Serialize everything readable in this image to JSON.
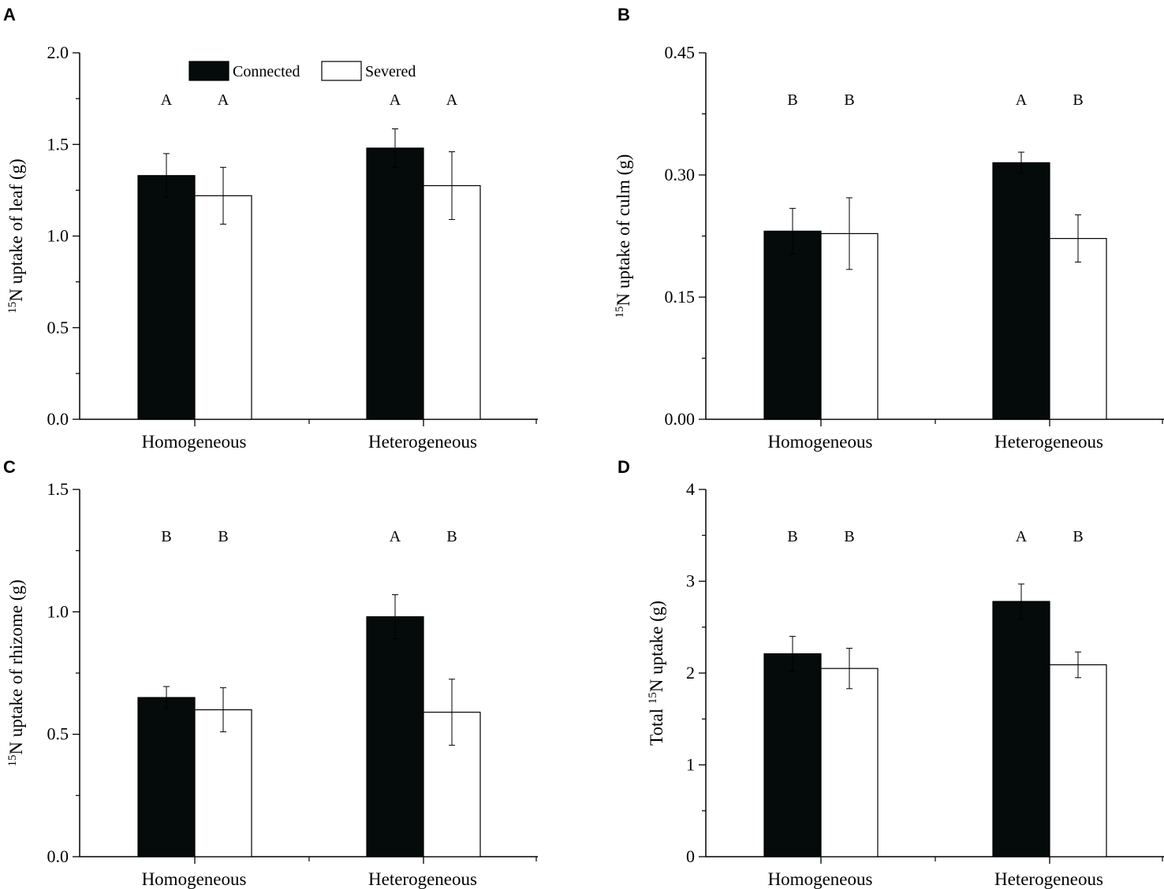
{
  "legend": {
    "connected": "Connected",
    "severed": "Severed",
    "connected_color": "#050a0a",
    "severed_color": "#ffffff"
  },
  "chart_data": [
    {
      "panel": "A",
      "type": "bar",
      "categories": [
        "Homogeneous",
        "Heterogeneous"
      ],
      "ylabel_sup": "15",
      "ylabel_pre": "",
      "ylabel_post": "N uptake of leaf (g)",
      "ylim": [
        0,
        2.0
      ],
      "yticks": [
        "0.0",
        "0.5",
        "1.0",
        "1.5",
        "2.0"
      ],
      "series": [
        {
          "name": "Connected",
          "values": [
            1.33,
            1.48
          ],
          "errors": [
            0.12,
            0.105
          ],
          "letters": [
            "A",
            "A"
          ]
        },
        {
          "name": "Severed",
          "values": [
            1.22,
            1.275
          ],
          "errors": [
            0.155,
            0.185
          ],
          "letters": [
            "A",
            "A"
          ]
        }
      ],
      "legend_position": "top-left"
    },
    {
      "panel": "B",
      "type": "bar",
      "categories": [
        "Homogeneous",
        "Heterogeneous"
      ],
      "ylabel_sup": "15",
      "ylabel_pre": "",
      "ylabel_post": "N uptake of culm (g)",
      "ylim": [
        0,
        0.45
      ],
      "yticks": [
        "0.00",
        "0.15",
        "0.30",
        "0.45"
      ],
      "series": [
        {
          "name": "Connected",
          "values": [
            0.231,
            0.315
          ],
          "errors": [
            0.028,
            0.013
          ],
          "letters": [
            "B",
            "A"
          ]
        },
        {
          "name": "Severed",
          "values": [
            0.228,
            0.222
          ],
          "errors": [
            0.044,
            0.029
          ],
          "letters": [
            "B",
            "B"
          ]
        }
      ]
    },
    {
      "panel": "C",
      "type": "bar",
      "categories": [
        "Homogeneous",
        "Heterogeneous"
      ],
      "ylabel_sup": "15",
      "ylabel_pre": "",
      "ylabel_post": "N uptake of rhizome (g)",
      "ylim": [
        0,
        1.5
      ],
      "yticks": [
        "0.0",
        "0.5",
        "1.0",
        "1.5"
      ],
      "series": [
        {
          "name": "Connected",
          "values": [
            0.65,
            0.98
          ],
          "errors": [
            0.045,
            0.09
          ],
          "letters": [
            "B",
            "A"
          ]
        },
        {
          "name": "Severed",
          "values": [
            0.6,
            0.59
          ],
          "errors": [
            0.09,
            0.135
          ],
          "letters": [
            "B",
            "B"
          ]
        }
      ]
    },
    {
      "panel": "D",
      "type": "bar",
      "categories": [
        "Homogeneous",
        "Heterogeneous"
      ],
      "ylabel_sup": "15",
      "ylabel_pre": "Total ",
      "ylabel_post": "N uptake (g)",
      "ylim": [
        0,
        4
      ],
      "yticks": [
        "0",
        "1",
        "2",
        "3",
        "4"
      ],
      "series": [
        {
          "name": "Connected",
          "values": [
            2.21,
            2.78
          ],
          "errors": [
            0.19,
            0.19
          ],
          "letters": [
            "B",
            "A"
          ]
        },
        {
          "name": "Severed",
          "values": [
            2.05,
            2.09
          ],
          "errors": [
            0.22,
            0.14
          ],
          "letters": [
            "B",
            "B"
          ]
        }
      ]
    }
  ]
}
